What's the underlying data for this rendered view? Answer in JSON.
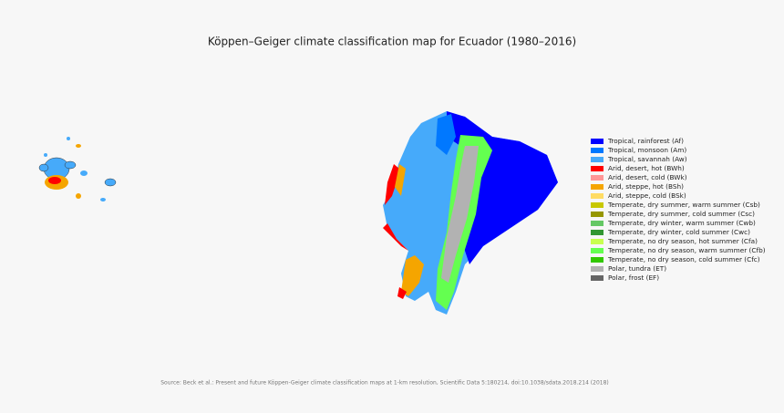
{
  "title": "Köppen–Geiger climate classification map for Ecuador (1980–2016)",
  "legend": [
    {
      "label": "Tropical, rainforest (Af)",
      "color": "#0000ff"
    },
    {
      "label": "Tropical, monsoon (Am)",
      "color": "#0078ff"
    },
    {
      "label": "Tropical, savannah (Aw)",
      "color": "#46aafa"
    },
    {
      "label": "Arid, desert, hot (BWh)",
      "color": "#ff0000"
    },
    {
      "label": "Arid, desert, cold (BWk)",
      "color": "#ff9696"
    },
    {
      "label": "Arid, steppe, hot (BSh)",
      "color": "#f5a500"
    },
    {
      "label": "Arid, steppe, cold (BSk)",
      "color": "#ffdc64"
    },
    {
      "label": "Temperate, dry summer, warm summer (Csb)",
      "color": "#c8c800"
    },
    {
      "label": "Temperate, dry summer, cold summer (Csc)",
      "color": "#969600"
    },
    {
      "label": "Temperate, dry winter, warm summer (Cwb)",
      "color": "#64c864"
    },
    {
      "label": "Temperate, dry winter, cold summer (Cwc)",
      "color": "#329632"
    },
    {
      "label": "Temperate, no dry season, hot summer (Cfa)",
      "color": "#c8ff50"
    },
    {
      "label": "Temperate, no dry season, warm summer (Cfb)",
      "color": "#64ff50"
    },
    {
      "label": "Temperate, no dry season, cold summer (Cfc)",
      "color": "#32c800"
    },
    {
      "label": "Polar, tundra (ET)",
      "color": "#b2b2b2"
    },
    {
      "label": "Polar, frost (EF)",
      "color": "#666666"
    }
  ],
  "source": "Source: Beck et al.: Present and future Köppen-Geiger climate classification maps at 1-km resolution, Scientific Data 5:180214, doi:10.1038/sdata.2018.214 (2018)"
}
